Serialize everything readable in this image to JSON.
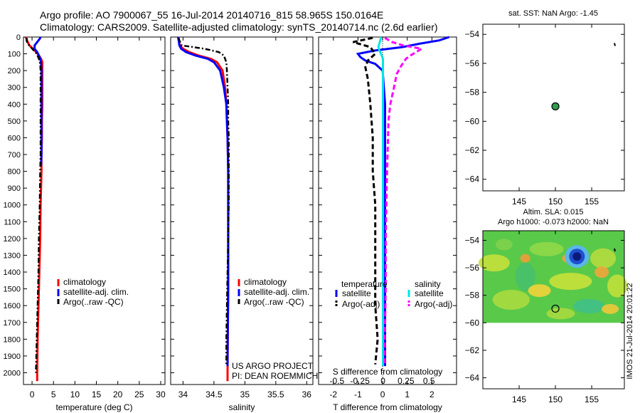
{
  "header": {
    "title_line1": "Argo profile: AO 7900067_55 16-Jul-2014 20140716_815 58.965S 150.0164E",
    "title_line2": "Climatology: CARS2009. Satellite-adjusted climatology: synTS_20140714.nc (2.6d earlier)"
  },
  "colors": {
    "clim": "#ff0000",
    "sat": "#0000ff",
    "argo": "#000000",
    "cyan": "#00e5e5",
    "magenta": "#ff00ff",
    "marker": "#2e9e4f"
  },
  "chart_data": [
    {
      "type": "line",
      "id": "temperature",
      "xlabel": "temperature (deg C)",
      "ylabel": "",
      "xlim": [
        -2,
        31
      ],
      "ylim": [
        2070,
        0
      ],
      "xticks": [
        0,
        5,
        10,
        15,
        20,
        25,
        30
      ],
      "xtick_labels": [
        "0",
        "5",
        "10",
        "15",
        "20",
        "25",
        "30"
      ],
      "yticks": [
        0,
        100,
        200,
        300,
        400,
        500,
        600,
        700,
        800,
        900,
        1000,
        1100,
        1200,
        1300,
        1400,
        1500,
        1600,
        1700,
        1800,
        1900,
        2000
      ],
      "ytick_labels": [
        "0",
        "100",
        "200",
        "300",
        "400",
        "500",
        "600",
        "700",
        "800",
        "900",
        "1000",
        "1100",
        "1200",
        "1300",
        "1400",
        "1500",
        "1600",
        "1700",
        "1800",
        "1900",
        "2000"
      ],
      "legend": [
        "climatology",
        "satellite-adj. clim.",
        "Argo(..raw -QC)"
      ],
      "series": [
        {
          "name": "climatology",
          "depth": [
            0,
            10,
            30,
            50,
            70,
            90,
            110,
            130,
            150,
            200,
            300,
            400,
            500,
            600,
            700,
            800,
            1000,
            1200,
            1400,
            1600,
            1800,
            2000,
            2050
          ],
          "values": [
            -1.5,
            -1.3,
            -1.0,
            -0.6,
            0.2,
            1.0,
            1.6,
            2.1,
            2.4,
            2.4,
            2.4,
            2.4,
            2.3,
            2.3,
            2.2,
            2.2,
            2.0,
            1.9,
            1.7,
            1.5,
            1.3,
            1.2,
            1.2
          ]
        },
        {
          "name": "satellite-adj. clim.",
          "depth": [
            0,
            10,
            30,
            50,
            70,
            90,
            110,
            130,
            150,
            200,
            300,
            400,
            500,
            600,
            700,
            770
          ],
          "values": [
            2.0,
            1.8,
            1.2,
            0.6,
            0.6,
            1.2,
            1.6,
            1.9,
            2.1,
            2.2,
            2.2,
            2.2,
            2.2,
            2.2,
            2.2,
            2.1
          ]
        },
        {
          "name": "Argo(..raw -QC)",
          "depth": [
            5,
            20,
            40,
            60,
            80,
            100,
            130,
            160,
            200,
            300,
            400,
            500,
            600,
            700,
            800,
            1000,
            1200,
            1400,
            1600,
            1800,
            2000
          ],
          "values": [
            -1.2,
            -1.3,
            -1.0,
            -0.3,
            0.4,
            1.1,
            1.6,
            1.9,
            2.0,
            2.0,
            2.0,
            2.0,
            2.0,
            2.0,
            1.9,
            1.8,
            1.6,
            1.5,
            1.3,
            1.1,
            0.9
          ]
        }
      ]
    },
    {
      "type": "line",
      "id": "salinity",
      "xlabel": "salinity",
      "ylabel": "",
      "xlim": [
        33.8,
        36.1
      ],
      "ylim": [
        2070,
        0
      ],
      "xticks": [
        34,
        34.5,
        35,
        35.5,
        36
      ],
      "xtick_labels": [
        "34",
        "34.5",
        "35",
        "35.5",
        "36"
      ],
      "legend": [
        "climatology",
        "satellite-adj. clim.",
        "Argo(..raw -QC)"
      ],
      "annotations": [
        "US ARGO PROJECT",
        "PI: DEAN ROEMMICH"
      ],
      "series": [
        {
          "name": "climatology",
          "depth": [
            0,
            20,
            50,
            70,
            90,
            110,
            130,
            150,
            200,
            300,
            400,
            500,
            600,
            800,
            1000,
            1500,
            2000,
            2050
          ],
          "values": [
            33.92,
            33.93,
            33.95,
            34.0,
            34.1,
            34.25,
            34.45,
            34.55,
            34.64,
            34.68,
            34.7,
            34.71,
            34.72,
            34.73,
            34.73,
            34.73,
            34.72,
            34.72
          ]
        },
        {
          "name": "satellite-adj. clim.",
          "depth": [
            0,
            20,
            50,
            70,
            90,
            110,
            130,
            150,
            200,
            300,
            400,
            500,
            600,
            800,
            1000,
            1500,
            1900,
            1960
          ],
          "values": [
            33.92,
            33.93,
            33.94,
            33.97,
            34.05,
            34.2,
            34.4,
            34.5,
            34.6,
            34.66,
            34.7,
            34.71,
            34.72,
            34.73,
            34.73,
            34.73,
            34.72,
            34.72
          ]
        },
        {
          "name": "Argo(..raw -QC)",
          "depth": [
            5,
            20,
            50,
            70,
            90,
            110,
            150,
            200,
            300,
            400,
            500,
            600,
            800,
            1000,
            1200,
            1400,
            1600,
            1800,
            1950
          ],
          "values": [
            33.93,
            33.94,
            33.98,
            34.35,
            34.58,
            34.66,
            34.7,
            34.71,
            34.72,
            34.73,
            34.73,
            34.74,
            34.74,
            34.74,
            34.73,
            34.72,
            34.71,
            34.7,
            34.7
          ]
        }
      ]
    },
    {
      "type": "line",
      "id": "difference",
      "xlabel": "T difference from climatology",
      "xlabel_top": "S difference from climatology",
      "xlim": [
        -2.6,
        3.0
      ],
      "ylim": [
        2070,
        0
      ],
      "xticks": [
        -2,
        -1,
        0,
        1,
        2
      ],
      "xtick_labels": [
        "-2",
        "-1",
        "0",
        "1",
        "2"
      ],
      "s_ticks": [
        -0.5,
        -0.25,
        0,
        0.25,
        0.5
      ],
      "s_tick_labels": [
        "-0.5",
        "-0.25",
        "0",
        "0.25",
        "0.5"
      ],
      "legend_titles": [
        "temperature",
        "salinity"
      ],
      "legend": [
        "satellite",
        "Argo(-adj)",
        "satellite",
        "Argo(-adj)"
      ],
      "series": [
        {
          "name": "temperature satellite",
          "depth": [
            0,
            20,
            40,
            60,
            80,
            100,
            120,
            140,
            160,
            200,
            400,
            600,
            800,
            1000,
            1200,
            1400,
            1600,
            1800,
            1960
          ],
          "values": [
            2.7,
            2.3,
            1.5,
            0.8,
            -0.3,
            -1.0,
            -0.9,
            -0.7,
            -0.3,
            0.0,
            0.1,
            0.1,
            0.1,
            0.1,
            0.1,
            0.1,
            0.1,
            0.1,
            0.1
          ]
        },
        {
          "name": "temperature Argo(-adj)",
          "depth": [
            5,
            30,
            60,
            100,
            140,
            180,
            250,
            400,
            600,
            800,
            1000,
            1200,
            1400,
            1600,
            1800,
            1950
          ],
          "values": [
            -0.4,
            -1.2,
            -0.5,
            -0.3,
            -0.6,
            -0.7,
            -0.6,
            -0.5,
            -0.4,
            -0.4,
            -0.3,
            -0.3,
            -0.3,
            -0.3,
            -0.2,
            -0.3
          ]
        },
        {
          "name": "salinity satellite",
          "depth": [
            0,
            20,
            40,
            60,
            80,
            100,
            130,
            200,
            400,
            600,
            800,
            1000,
            1200,
            1400,
            1600,
            1800,
            1960
          ],
          "values": [
            -0.02,
            -0.03,
            -0.04,
            -0.05,
            -0.04,
            -0.02,
            0,
            0,
            0,
            0,
            0,
            0,
            0,
            0,
            0,
            0,
            0
          ]
        },
        {
          "name": "salinity Argo(-adj)",
          "depth": [
            5,
            30,
            50,
            70,
            90,
            110,
            130,
            170,
            220,
            300,
            400,
            500,
            700,
            900,
            1200,
            1500,
            1800,
            1950
          ],
          "values": [
            0.02,
            0.1,
            0.22,
            0.42,
            0.36,
            0.3,
            0.25,
            0.2,
            0.15,
            0.12,
            0.08,
            0.06,
            0.05,
            0.04,
            0.03,
            0.03,
            0.02,
            0.02
          ]
        }
      ]
    },
    {
      "type": "scatter",
      "id": "sst_map",
      "title": "sat. SST: NaN Argo: -1.45",
      "xlim": [
        140,
        159.5
      ],
      "ylim": [
        -64.8,
        -53.3
      ],
      "xticks": [
        145,
        150,
        155
      ],
      "xtick_labels": [
        "145",
        "150",
        "155"
      ],
      "yticks": [
        -54,
        -56,
        -58,
        -60,
        -62,
        -64
      ],
      "ytick_labels": [
        "−54",
        "−56",
        "−58",
        "−60",
        "−62",
        "−64"
      ],
      "points": [
        {
          "lon": 150.0,
          "lat": -58.97
        }
      ]
    },
    {
      "type": "heatmap",
      "id": "sla_map",
      "title_line1": "Altim. SLA: 0.015",
      "title_line2": "Argo h1000: -0.073 h2000: NaN",
      "xlim": [
        140,
        159.5
      ],
      "ylim": [
        -64.8,
        -53.3
      ],
      "xticks": [
        145,
        150,
        155
      ],
      "xtick_labels": [
        "145",
        "150",
        "155"
      ],
      "yticks": [
        -54,
        -56,
        -58,
        -60,
        -62,
        -64
      ],
      "ytick_labels": [
        "−54",
        "−56",
        "−58",
        "−60",
        "−62",
        "−64"
      ],
      "data_lat_range": [
        -60,
        -53.3
      ],
      "points": [
        {
          "lon": 150.0,
          "lat": -58.97
        }
      ],
      "side_label": "IMOS 21-Jul-2014 20:01:22"
    }
  ]
}
